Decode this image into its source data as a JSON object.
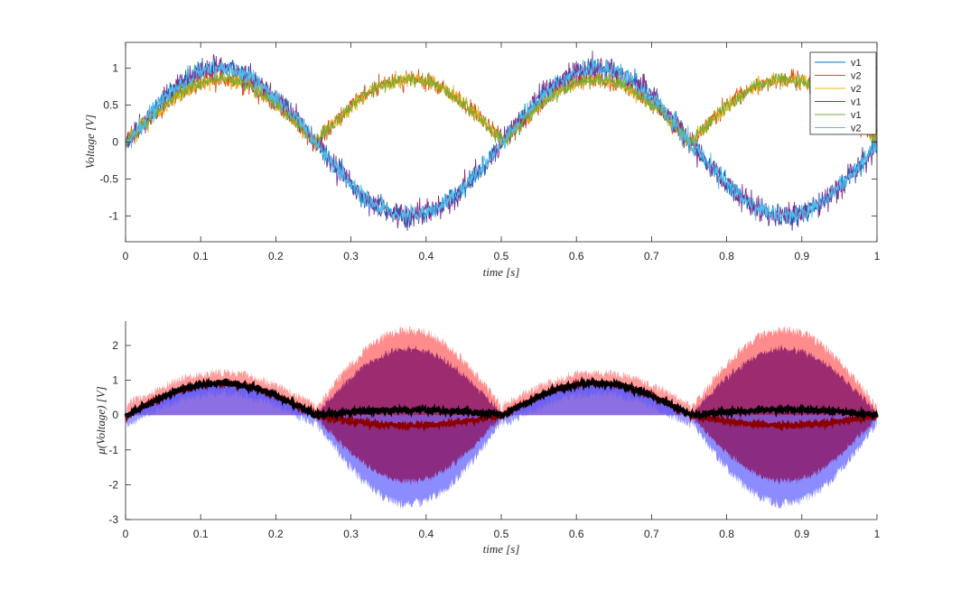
{
  "chart_data": [
    {
      "type": "line",
      "xlabel": "time [s]",
      "ylabel": "Voltage [V]",
      "xlim": [
        0,
        1
      ],
      "ylim": [
        -1.35,
        1.35
      ],
      "xticks": [
        "0",
        "0.1",
        "0.2",
        "0.3",
        "0.4",
        "0.5",
        "0.6",
        "0.7",
        "0.8",
        "0.9",
        "1"
      ],
      "yticks": [
        "-1",
        "-0.5",
        "0",
        "0.5",
        "1"
      ],
      "grid": false,
      "legend_position": "top-right",
      "series": [
        {
          "name": "v1",
          "color": "#0072BD",
          "shape": "sin",
          "amp": 1.0,
          "noise": 0.1
        },
        {
          "name": "v2",
          "color": "#D95319",
          "shape": "abs",
          "amp": 0.85,
          "noise": 0.09
        },
        {
          "name": "v2",
          "color": "#EDB120",
          "shape": "abs",
          "amp": 0.85,
          "noise": 0.08
        },
        {
          "name": "v1",
          "color": "#7E2F8E",
          "shape": "sin",
          "amp": 1.0,
          "noise": 0.12
        },
        {
          "name": "v1",
          "color": "#77AC30",
          "shape": "abs",
          "amp": 0.85,
          "noise": 0.07
        },
        {
          "name": "v2",
          "color": "#4DBEEE",
          "shape": "sin",
          "amp": 1.0,
          "noise": 0.09
        }
      ],
      "frequency_hz": 2,
      "phase_s": 0.005
    },
    {
      "type": "area",
      "xlabel": "μ(Voltage) [V]",
      "xlabel_comment": "",
      "x_axis_label": "time [s]",
      "ylabel": "μ(Voltage) [V]",
      "xlim": [
        0,
        1
      ],
      "ylim": [
        -3,
        2.7
      ],
      "xticks": [
        "0",
        "0.1",
        "0.2",
        "0.3",
        "0.4",
        "0.5",
        "0.6",
        "0.7",
        "0.8",
        "0.9",
        "1"
      ],
      "yticks": [
        "-3",
        "-2",
        "-1",
        "0",
        "1",
        "2"
      ],
      "grid": false,
      "bands": [
        {
          "role": "upper-spread",
          "color": "#ff6666",
          "peak": 2.3
        },
        {
          "role": "lower-spread",
          "color": "#6666ff",
          "peak": -2.4
        },
        {
          "role": "inner-spread",
          "color": "#8b1a6b",
          "peak": 1.9
        }
      ],
      "lines": [
        {
          "role": "dark-red-mean",
          "color": "#8b0000",
          "neg_half_value": -0.3
        },
        {
          "role": "black-mean",
          "color": "#000000",
          "neg_half_value": 0.15
        }
      ]
    }
  ]
}
